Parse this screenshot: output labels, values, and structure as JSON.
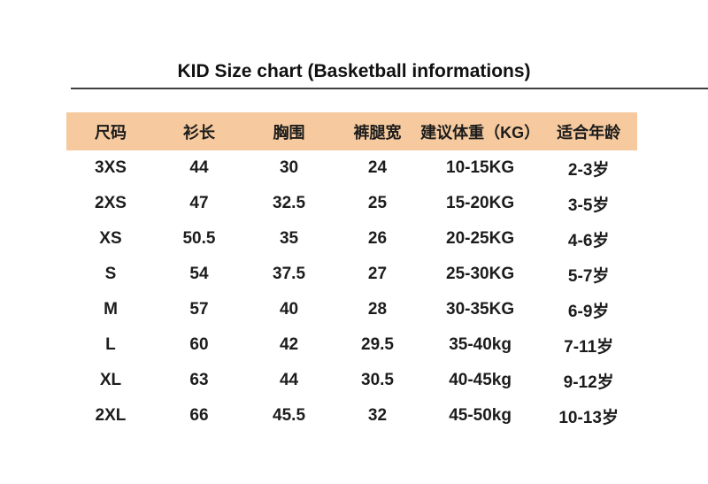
{
  "page": {
    "title": "KID Size chart (Basketball informations)"
  },
  "colors": {
    "header_bg": "#F6CA9E",
    "text": "#1C1C1C",
    "divider": "#3F3F3F",
    "background": "#FFFFFF"
  },
  "chart_data": {
    "type": "table",
    "title": "KID Size chart (Basketball informations)",
    "columns": [
      "尺码",
      "衫长",
      "胸围",
      "裤腿宽",
      "建议体重（KG）",
      "适合年龄"
    ],
    "rows": [
      [
        "3XS",
        "44",
        "30",
        "24",
        "10-15KG",
        "2-3岁"
      ],
      [
        "2XS",
        "47",
        "32.5",
        "25",
        "15-20KG",
        "3-5岁"
      ],
      [
        "XS",
        "50.5",
        "35",
        "26",
        "20-25KG",
        "4-6岁"
      ],
      [
        "S",
        "54",
        "37.5",
        "27",
        "25-30KG",
        "5-7岁"
      ],
      [
        "M",
        "57",
        "40",
        "28",
        "30-35KG",
        "6-9岁"
      ],
      [
        "L",
        "60",
        "42",
        "29.5",
        "35-40kg",
        "7-11岁"
      ],
      [
        "XL",
        "63",
        "44",
        "30.5",
        "40-45kg",
        "9-12岁"
      ],
      [
        "2XL",
        "66",
        "45.5",
        "32",
        "45-50kg",
        "10-13岁"
      ]
    ],
    "column_widths_pct": [
      15.5,
      15.5,
      16,
      15,
      21,
      17
    ]
  }
}
